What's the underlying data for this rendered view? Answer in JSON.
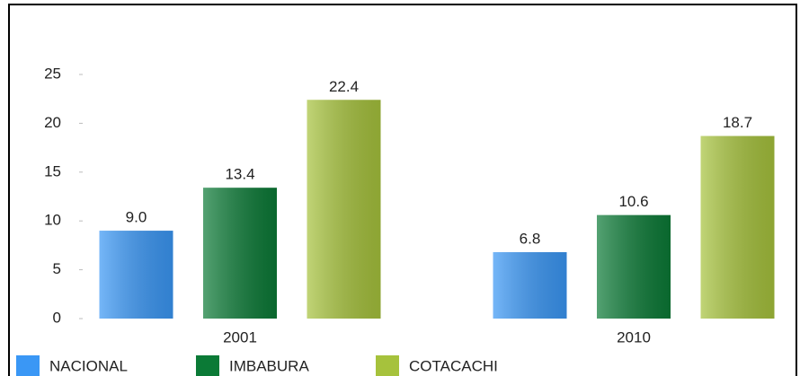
{
  "chart_data": {
    "type": "bar",
    "categories": [
      "2001",
      "2010"
    ],
    "series": [
      {
        "name": "NACIONAL",
        "color": "#3a97f5",
        "values": [
          9.0,
          6.8
        ],
        "value_labels": [
          "9.0",
          "6.8"
        ]
      },
      {
        "name": "IMBABURA",
        "color": "#0b7a36",
        "values": [
          13.4,
          10.6
        ],
        "value_labels": [
          "13.4",
          "10.6"
        ]
      },
      {
        "name": "COTACACHI",
        "color": "#a6c23c",
        "values": [
          22.4,
          18.7
        ],
        "value_labels": [
          "22.4",
          "18.7"
        ]
      }
    ],
    "ylim": [
      0,
      25
    ],
    "yticks": [
      0,
      5,
      10,
      15,
      20,
      25
    ],
    "grid": false,
    "legend": "bottom"
  }
}
